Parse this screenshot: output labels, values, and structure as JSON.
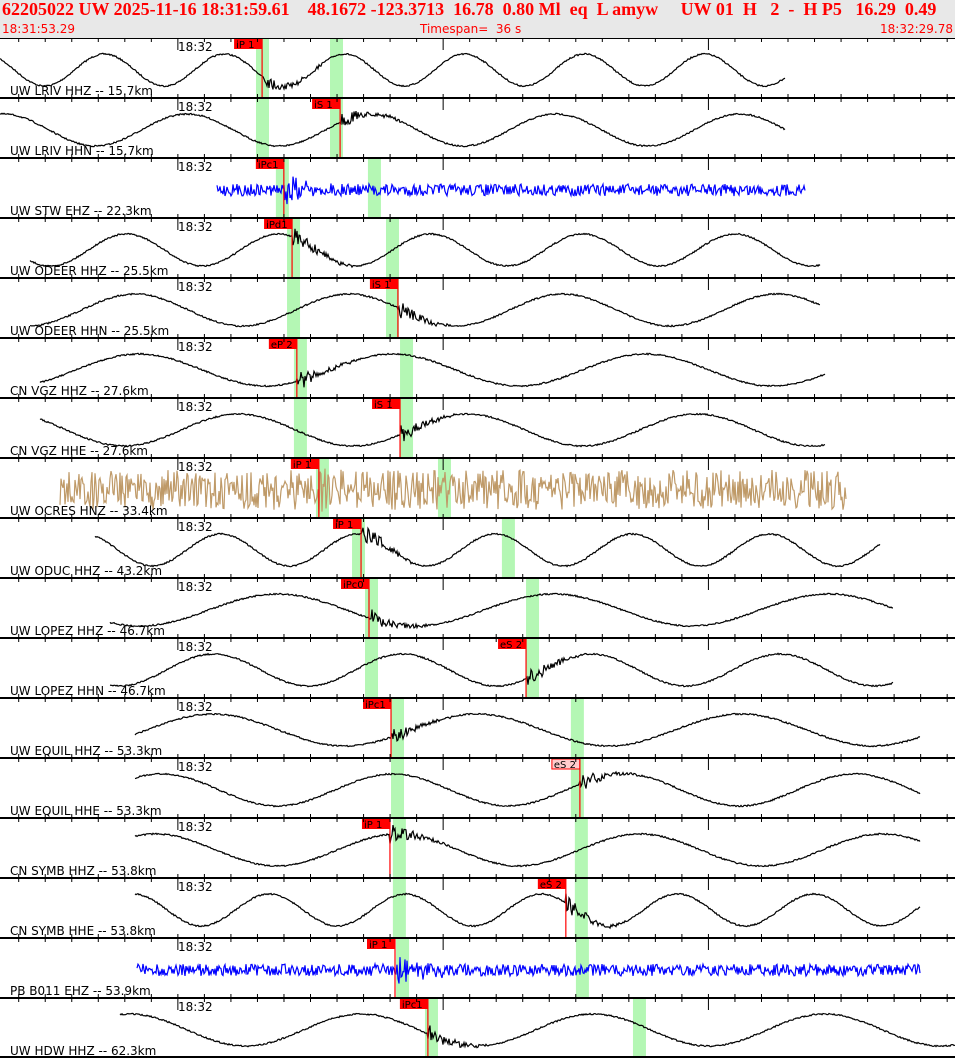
{
  "header": {
    "title": "62205022 UW 2025-11-16 18:31:59.61    48.1672 -123.3713  16.78  0.80 Ml  eq  L amyw     UW 01  H   2  -  H P5   16.29  0.49",
    "start_time": "18:31:53.29",
    "timespan": "Timespan=  36 s",
    "end_time": "18:32:29.78"
  },
  "colors": {
    "header_text": "#ff0000",
    "pick": "#ff0000",
    "window": "#b4f7b4",
    "trace": "#000000",
    "trace_blue": "#0000ff",
    "trace_tan": "#bf9a68"
  },
  "time_label": "18:32",
  "timespan_seconds": 36,
  "traces": [
    {
      "label": "UW LRIV HHZ -- 15.7km",
      "color": "#000000",
      "pick": {
        "text": "iP 1",
        "t": 9.88
      },
      "windows": [
        9.65,
        12.44
      ]
    },
    {
      "label": "UW LRIV HHN -- 15.7km",
      "color": "#000000",
      "pick": {
        "text": "iS 1",
        "t": 12.82
      },
      "windows": [
        9.65,
        12.44
      ]
    },
    {
      "label": "UW STW EHZ -- 22.3km",
      "color": "#0000ff",
      "pick": {
        "text": "iPc1",
        "t": 10.7
      },
      "windows": [
        10.4,
        13.87
      ]
    },
    {
      "label": "UW ODEER HHZ -- 25.5km",
      "color": "#000000",
      "pick": {
        "text": "iPd1",
        "t": 11.01
      },
      "windows": [
        10.82,
        14.55
      ]
    },
    {
      "label": "UW ODEER HHN -- 25.5km",
      "color": "#000000",
      "pick": {
        "text": "iS 1",
        "t": 15.0
      },
      "windows": [
        10.82,
        14.55
      ]
    },
    {
      "label": "CN VGZ HHZ -- 27.6km",
      "color": "#000000",
      "pick": {
        "text": "eP 2",
        "t": 11.19
      },
      "windows": [
        11.08,
        15.08
      ]
    },
    {
      "label": "CN VGZ HHE -- 27.6km",
      "color": "#000000",
      "pick": {
        "text": "iS 1",
        "t": 15.08
      },
      "windows": [
        11.08,
        15.08
      ]
    },
    {
      "label": "UW OCRES HNZ -- 33.4km",
      "color": "#bf9a68",
      "pick": {
        "text": "iP 1",
        "t": 12.02
      },
      "windows": [
        11.91,
        16.51
      ]
    },
    {
      "label": "UW ODUC HHZ -- 43.2km",
      "color": "#000000",
      "pick": {
        "text": "iP 1",
        "t": 13.61
      },
      "windows": [
        13.27,
        18.92
      ]
    },
    {
      "label": "UW LOPEZ HHZ -- 46.7km",
      "color": "#000000",
      "pick": {
        "text": "iPc0",
        "t": 13.91
      },
      "windows": [
        13.76,
        19.83
      ]
    },
    {
      "label": "UW LOPEZ HHN -- 46.7km",
      "color": "#000000",
      "pick": {
        "text": "eS 2",
        "t": 19.83
      },
      "windows": [
        13.76,
        19.83
      ]
    },
    {
      "label": "UW EQUIL HHZ -- 53.3km",
      "color": "#000000",
      "pick": {
        "text": "iPc1",
        "t": 14.74
      },
      "windows": [
        14.74,
        21.52
      ]
    },
    {
      "label": "UW EQUIL HHE -- 53.3km",
      "color": "#000000",
      "pick": {
        "text": "eS 2",
        "t": 21.86,
        "pale": true
      },
      "windows": [
        14.74,
        21.52
      ]
    },
    {
      "label": "CN SYMB HHZ -- 53.8km",
      "color": "#000000",
      "pick": {
        "text": "iP 1",
        "t": 14.7
      },
      "windows": [
        14.81,
        21.67
      ]
    },
    {
      "label": "CN SYMB HHE -- 53.8km",
      "color": "#000000",
      "pick": {
        "text": "eS 2",
        "t": 21.33
      },
      "windows": [
        14.81,
        21.67
      ]
    },
    {
      "label": "PB B011 EHZ -- 53.9km",
      "color": "#0000ff",
      "pick": {
        "text": "iP 1",
        "t": 14.89
      },
      "windows": [
        14.93,
        21.71
      ]
    },
    {
      "label": "UW HDW HHZ -- 62.3km",
      "color": "#000000",
      "pick": {
        "text": "iPc1",
        "t": 16.13
      },
      "windows": [
        16.02,
        23.86
      ]
    }
  ]
}
